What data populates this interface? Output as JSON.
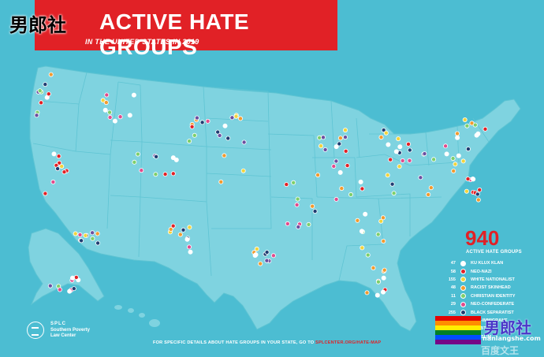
{
  "header": {
    "title": "ACTIVE HATE GROUPS",
    "title_visible": "ACTIVE HATE GROUPS",
    "subtitle": "IN THE UNITED STATES IN 2019",
    "accent_color": "#e12126"
  },
  "watermark": {
    "top_left_text": "男郎社",
    "bottom_right_text": "男郎社",
    "bottom_right_url": "nanlangshe.com",
    "bottom_right_extra": "百度文王"
  },
  "summary": {
    "total": "940",
    "total_label": "ACTIVE HATE GROUPS"
  },
  "legend": [
    {
      "count": "47",
      "label": "KU KLUX KLAN",
      "color": "#ffffff"
    },
    {
      "count": "58",
      "label": "NEO-NAZI",
      "color": "#e12126"
    },
    {
      "count": "155",
      "label": "WHITE NATIONALIST",
      "color": "#f2d43c"
    },
    {
      "count": "48",
      "label": "RACIST SKINHEAD",
      "color": "#f29a2e"
    },
    {
      "count": "11",
      "label": "CHRISTIAN IDENTITY",
      "color": "#7dcf6b"
    },
    {
      "count": "29",
      "label": "NEO-CONFEDERATE",
      "color": "#e14b8c"
    },
    {
      "count": "255",
      "label": "BLACK SEPARATIST",
      "color": "#1f3d72"
    },
    {
      "count": "20",
      "label": "ANTI-IMMIGRANT",
      "color": "#6b4fa0"
    },
    {
      "count": "",
      "label": "...LGBT",
      "color": "#8b8b8b"
    },
    {
      "count": "",
      "label": "...MUSLIM",
      "color": "#3a8f5b"
    }
  ],
  "organization": {
    "acronym": "SPLC",
    "name_line1": "Southern Poverty",
    "name_line2": "Law Center"
  },
  "footer": {
    "text": "FOR SPECIFIC DETAILS ABOUT HATE GROUPS IN YOUR STATE, GO TO ",
    "link": "SPLCENTER.ORG/HATE-MAP"
  },
  "map_colors": {
    "land": "#7fd3e0",
    "border": "#5bbccc"
  }
}
